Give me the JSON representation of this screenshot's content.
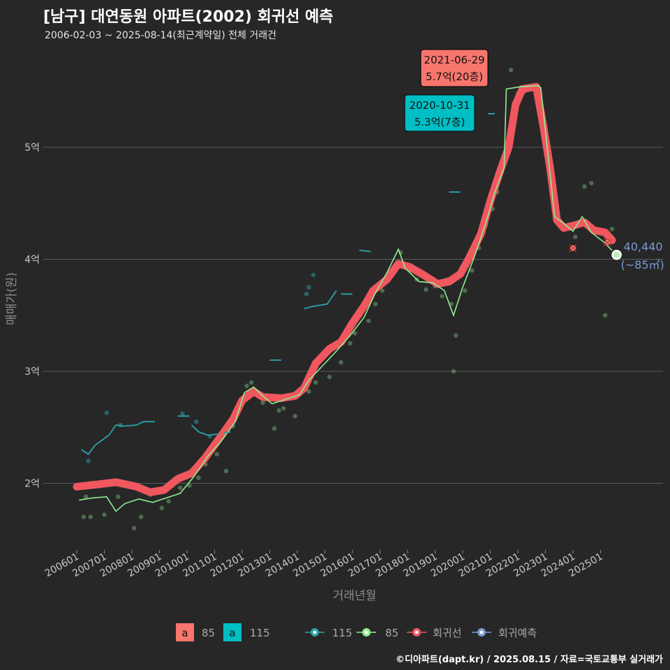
{
  "title": "[남구] 대연동원 아파트(2002) 회귀선 예측",
  "subtitle": "2006-02-03 ~ 2025-08-14(최근계약일) 전체 거래건",
  "caption": "©디아파트(dapt.kr) / 2025.08.15 / 자료=국토교통부 실거래가",
  "colors": {
    "background": "#272728",
    "grid": "#5a5a5a",
    "area_85": "#f8766d",
    "area_115": "#00bfc4",
    "line_115": "#2aa3a8",
    "line_85": "#90ee90",
    "regression": "#f0575e",
    "forecast": "#7b9bd1"
  },
  "chart_data": {
    "type": "line",
    "title": "[남구] 대연동원 아파트(2002) 회귀선 예측",
    "xlabel": "거래년월",
    "ylabel": "매매가(원)",
    "x_range": [
      "2006-01",
      "2025-12"
    ],
    "ylim": [
      1.5,
      5.8
    ],
    "y_ticks": [
      {
        "value": 2,
        "label": "2억"
      },
      {
        "value": 3,
        "label": "3억"
      },
      {
        "value": 4,
        "label": "4억"
      },
      {
        "value": 5,
        "label": "5억"
      }
    ],
    "x_ticks": [
      "200601",
      "200701",
      "200801",
      "200901",
      "201001",
      "201101",
      "201201",
      "201301",
      "201401",
      "201501",
      "201601",
      "201701",
      "201801",
      "201901",
      "202001",
      "202101",
      "202201",
      "202301",
      "202401",
      "202501"
    ],
    "grid": true,
    "legend_position": "bottom",
    "legend": {
      "fill": [
        {
          "key": "a",
          "label": "85",
          "color": "#f8766d"
        },
        {
          "key": "a",
          "label": "115",
          "color": "#00bfc4"
        }
      ],
      "lines": [
        {
          "label": "115",
          "color": "#2aa3a8"
        },
        {
          "label": "85",
          "color": "#90ee90"
        },
        {
          "label": "회귀선",
          "color": "#f0575e"
        },
        {
          "label": "회귀예측",
          "color": "#7b9bd1"
        }
      ]
    },
    "series": [
      {
        "name": "회귀선",
        "points": [
          [
            "2006-01",
            1.97
          ],
          [
            "2006-10",
            1.99
          ],
          [
            "2007-06",
            2.01
          ],
          [
            "2008-03",
            1.97
          ],
          [
            "2008-09",
            1.92
          ],
          [
            "2009-03",
            1.94
          ],
          [
            "2009-09",
            2.04
          ],
          [
            "2010-03",
            2.09
          ],
          [
            "2010-09",
            2.23
          ],
          [
            "2011-03",
            2.4
          ],
          [
            "2011-09",
            2.57
          ],
          [
            "2012-01",
            2.74
          ],
          [
            "2012-06",
            2.82
          ],
          [
            "2012-10",
            2.77
          ],
          [
            "2013-06",
            2.76
          ],
          [
            "2013-12",
            2.78
          ],
          [
            "2014-04",
            2.85
          ],
          [
            "2014-09",
            3.07
          ],
          [
            "2015-03",
            3.2
          ],
          [
            "2015-08",
            3.26
          ],
          [
            "2016-01",
            3.43
          ],
          [
            "2016-06",
            3.58
          ],
          [
            "2016-10",
            3.72
          ],
          [
            "2017-04",
            3.82
          ],
          [
            "2017-09",
            3.96
          ],
          [
            "2018-02",
            3.93
          ],
          [
            "2018-08",
            3.86
          ],
          [
            "2019-02",
            3.78
          ],
          [
            "2019-07",
            3.8
          ],
          [
            "2019-12",
            3.87
          ],
          [
            "2020-04",
            4.02
          ],
          [
            "2020-09",
            4.23
          ],
          [
            "2021-01",
            4.52
          ],
          [
            "2021-05",
            4.77
          ],
          [
            "2021-09",
            5.0
          ],
          [
            "2021-12",
            5.38
          ],
          [
            "2022-03",
            5.52
          ],
          [
            "2022-09",
            5.54
          ],
          [
            "2022-12",
            5.2
          ],
          [
            "2023-03",
            4.82
          ],
          [
            "2023-06",
            4.35
          ],
          [
            "2023-09",
            4.28
          ],
          [
            "2024-01",
            4.3
          ],
          [
            "2024-06",
            4.33
          ],
          [
            "2024-10",
            4.26
          ],
          [
            "2025-03",
            4.24
          ],
          [
            "2025-06",
            4.17
          ]
        ]
      },
      {
        "name": "85",
        "points": [
          [
            "2006-02",
            1.85
          ],
          [
            "2006-08",
            1.87
          ],
          [
            "2007-02",
            1.88
          ],
          [
            "2007-06",
            1.75
          ],
          [
            "2007-10",
            1.82
          ],
          [
            "2008-04",
            1.86
          ],
          [
            "2008-10",
            1.83
          ],
          [
            "2009-04",
            1.87
          ],
          [
            "2009-10",
            1.91
          ],
          [
            "2010-04",
            2.06
          ],
          [
            "2010-10",
            2.24
          ],
          [
            "2011-04",
            2.38
          ],
          [
            "2011-10",
            2.55
          ],
          [
            "2012-02",
            2.81
          ],
          [
            "2012-06",
            2.86
          ],
          [
            "2012-10",
            2.78
          ],
          [
            "2013-02",
            2.71
          ],
          [
            "2013-08",
            2.75
          ],
          [
            "2014-02",
            2.79
          ],
          [
            "2014-06",
            2.92
          ],
          [
            "2014-12",
            3.05
          ],
          [
            "2015-06",
            3.18
          ],
          [
            "2015-12",
            3.32
          ],
          [
            "2016-06",
            3.48
          ],
          [
            "2016-11",
            3.7
          ],
          [
            "2017-04",
            3.88
          ],
          [
            "2017-09",
            4.09
          ],
          [
            "2017-12",
            3.92
          ],
          [
            "2018-06",
            3.8
          ],
          [
            "2018-12",
            3.79
          ],
          [
            "2019-05",
            3.72
          ],
          [
            "2019-09",
            3.5
          ],
          [
            "2020-01",
            3.75
          ],
          [
            "2020-06",
            4.02
          ],
          [
            "2020-11",
            4.32
          ],
          [
            "2021-03",
            4.6
          ],
          [
            "2021-07",
            4.82
          ],
          [
            "2021-08",
            5.52
          ],
          [
            "2022-02",
            5.54
          ],
          [
            "2022-10",
            5.55
          ],
          [
            "2022-11",
            5.53
          ],
          [
            "2023-05",
            4.38
          ],
          [
            "2023-09",
            4.32
          ],
          [
            "2024-01",
            4.25
          ],
          [
            "2024-05",
            4.38
          ],
          [
            "2024-09",
            4.24
          ],
          [
            "2025-02",
            4.16
          ],
          [
            "2025-06",
            4.08
          ]
        ]
      },
      {
        "name": "115",
        "segments": [
          [
            [
              "2006-03",
              2.3
            ],
            [
              "2006-06",
              2.26
            ],
            [
              "2006-09",
              2.34
            ],
            [
              "2007-03",
              2.43
            ],
            [
              "2007-06",
              2.52
            ],
            [
              "2007-09",
              2.51
            ],
            [
              "2008-03",
              2.52
            ],
            [
              "2008-06",
              2.55
            ],
            [
              "2008-11",
              2.55
            ]
          ],
          [
            [
              "2009-09",
              2.6
            ],
            [
              "2010-02",
              2.6
            ]
          ],
          [
            [
              "2010-03",
              2.52
            ],
            [
              "2010-06",
              2.46
            ],
            [
              "2010-10",
              2.43
            ],
            [
              "2011-03",
              2.44
            ]
          ],
          [
            [
              "2011-05",
              2.45
            ],
            [
              "2011-08",
              2.46
            ]
          ],
          [
            [
              "2013-01",
              3.1
            ],
            [
              "2013-06",
              3.1
            ]
          ],
          [
            [
              "2014-04",
              3.56
            ],
            [
              "2014-08",
              3.58
            ],
            [
              "2015-02",
              3.6
            ],
            [
              "2015-06",
              3.72
            ]
          ],
          [
            [
              "2015-08",
              3.69
            ],
            [
              "2016-01",
              3.69
            ]
          ],
          [
            [
              "2016-04",
              4.08
            ],
            [
              "2016-09",
              4.07
            ]
          ],
          [
            [
              "2019-07",
              4.6
            ],
            [
              "2019-12",
              4.6
            ]
          ],
          [
            [
              "2020-12",
              5.3
            ],
            [
              "2021-03",
              5.3
            ]
          ]
        ]
      },
      {
        "name": "회귀예측",
        "points": [
          [
            "2025-08",
            4.04
          ]
        ]
      }
    ],
    "scatter_85": [
      [
        "2006-04",
        1.7
      ],
      [
        "2006-07",
        1.7
      ],
      [
        "2006-05",
        1.88
      ],
      [
        "2007-01",
        1.72
      ],
      [
        "2007-07",
        1.88
      ],
      [
        "2008-02",
        1.6
      ],
      [
        "2008-05",
        1.7
      ],
      [
        "2008-09",
        1.9
      ],
      [
        "2009-02",
        1.78
      ],
      [
        "2009-05",
        1.84
      ],
      [
        "2009-10",
        1.96
      ],
      [
        "2010-02",
        1.98
      ],
      [
        "2010-06",
        2.05
      ],
      [
        "2010-09",
        2.17
      ],
      [
        "2011-02",
        2.26
      ],
      [
        "2011-06",
        2.11
      ],
      [
        "2011-09",
        2.51
      ],
      [
        "2012-03",
        2.87
      ],
      [
        "2012-05",
        2.9
      ],
      [
        "2012-10",
        2.72
      ],
      [
        "2013-03",
        2.49
      ],
      [
        "2013-05",
        2.65
      ],
      [
        "2013-07",
        2.67
      ],
      [
        "2013-12",
        2.6
      ],
      [
        "2014-06",
        2.82
      ],
      [
        "2014-09",
        2.9
      ],
      [
        "2015-03",
        2.95
      ],
      [
        "2015-08",
        3.08
      ],
      [
        "2015-12",
        3.25
      ],
      [
        "2016-02",
        3.34
      ],
      [
        "2016-08",
        3.45
      ],
      [
        "2016-11",
        3.6
      ],
      [
        "2017-02",
        3.72
      ],
      [
        "2017-05",
        3.85
      ],
      [
        "2017-08",
        3.95
      ],
      [
        "2017-10",
        4.06
      ],
      [
        "2018-02",
        3.9
      ],
      [
        "2018-05",
        3.82
      ],
      [
        "2018-09",
        3.73
      ],
      [
        "2019-01",
        3.76
      ],
      [
        "2019-04",
        3.67
      ],
      [
        "2019-06",
        3.82
      ],
      [
        "2019-08",
        3.6
      ],
      [
        "2019-09",
        3.0
      ],
      [
        "2019-10",
        3.32
      ],
      [
        "2020-02",
        3.72
      ],
      [
        "2020-05",
        3.9
      ],
      [
        "2020-08",
        4.1
      ],
      [
        "2020-11",
        4.3
      ],
      [
        "2021-02",
        4.45
      ],
      [
        "2021-04",
        4.6
      ],
      [
        "2021-07",
        4.9
      ],
      [
        "2021-10",
        5.69
      ],
      [
        "2022-01",
        5.48
      ],
      [
        "2022-04",
        5.5
      ],
      [
        "2023-06",
        4.37
      ],
      [
        "2024-02",
        4.2
      ],
      [
        "2024-06",
        4.65
      ],
      [
        "2024-09",
        4.68
      ],
      [
        "2025-03",
        3.5
      ],
      [
        "2025-06",
        4.27
      ]
    ],
    "scatter_115": [
      [
        "2006-06",
        2.2
      ],
      [
        "2007-02",
        2.63
      ],
      [
        "2007-08",
        2.52
      ],
      [
        "2009-11",
        2.62
      ],
      [
        "2010-05",
        2.55
      ],
      [
        "2010-11",
        2.42
      ],
      [
        "2014-05",
        3.69
      ],
      [
        "2014-08",
        3.86
      ],
      [
        "2014-06",
        3.75
      ]
    ],
    "anomalies": [
      [
        "2024-01",
        4.1
      ],
      [
        "2025-04",
        4.15
      ]
    ],
    "annotations": [
      {
        "date_label": "2021-06-29",
        "value_label": "5.7억(20층)",
        "color": "#f8766d",
        "x": "2021-10",
        "y": 5.69
      },
      {
        "date_label": "2020-10-31",
        "value_label": "5.3억(7층)",
        "color": "#00bfc4",
        "x": "2020-12",
        "y": 5.3
      }
    ],
    "forecast_label": {
      "value": "40,440",
      "area": "(~85㎡)",
      "x": "2025-08",
      "y": 4.04
    }
  }
}
